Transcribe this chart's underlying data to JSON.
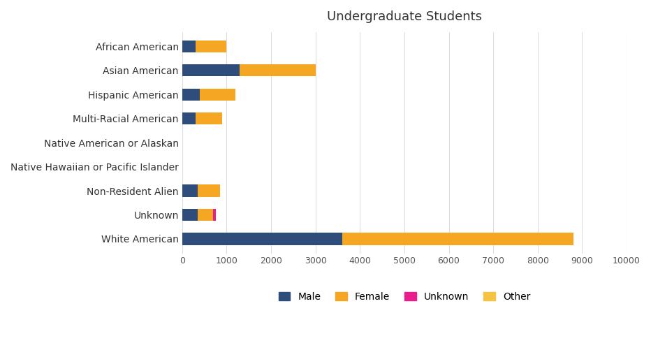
{
  "title": "Undergraduate Students",
  "categories": [
    "White American",
    "Unknown",
    "Non-Resident Alien",
    "Native Hawaiian or Pacific Islander",
    "Native American or Alaskan",
    "Multi-Racial American",
    "Hispanic American",
    "Asian American",
    "African American"
  ],
  "series": {
    "Male": [
      3600,
      350,
      350,
      3,
      5,
      300,
      400,
      1300,
      300
    ],
    "Female": [
      5200,
      350,
      500,
      3,
      5,
      600,
      800,
      1700,
      700
    ],
    "Unknown": [
      0,
      60,
      0,
      0,
      0,
      0,
      0,
      0,
      0
    ],
    "Other": [
      0,
      0,
      0,
      0,
      0,
      0,
      0,
      0,
      0
    ]
  },
  "colors": {
    "Male": "#2e4d7b",
    "Female": "#f5a623",
    "Unknown": "#e91e8c",
    "Other": "#f5c242"
  },
  "legend_labels": [
    "Male",
    "Female",
    "Unknown",
    "Other"
  ],
  "xlim": [
    0,
    10000
  ],
  "xticks": [
    0,
    1000,
    2000,
    3000,
    4000,
    5000,
    6000,
    7000,
    8000,
    9000,
    10000
  ],
  "background_color": "#ffffff",
  "grid_color": "#dddddd",
  "title_fontsize": 13,
  "label_fontsize": 10,
  "tick_fontsize": 9,
  "bar_height": 0.5
}
